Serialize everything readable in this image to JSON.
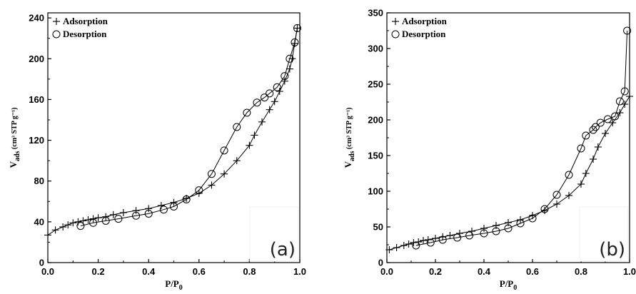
{
  "chart_data": [
    {
      "type": "scatter",
      "panel_label": "(a)",
      "xlabel": "P/P0",
      "xlabel_main": "P/P",
      "xlabel_sub": "0",
      "ylabel_main": "V",
      "ylabel_sub": "ads",
      "ylabel_unit": "(cm³ STP g⁻¹)",
      "xlim": [
        0,
        1.0
      ],
      "ylim": [
        0,
        245
      ],
      "xticks": [
        0.0,
        0.2,
        0.4,
        0.6,
        0.8,
        1.0
      ],
      "xtick_labels": [
        "0.0",
        "0.2",
        "0.4",
        "0.6",
        "0.8",
        "1.0"
      ],
      "yticks": [
        0,
        40,
        80,
        120,
        160,
        200,
        240
      ],
      "ytick_labels": [
        "0",
        "40",
        "80",
        "120",
        "160",
        "200",
        "240"
      ],
      "legend_position": "top-left",
      "series": [
        {
          "name": "Adsorption",
          "marker": "plus",
          "x": [
            0.0,
            0.03,
            0.06,
            0.08,
            0.1,
            0.12,
            0.14,
            0.16,
            0.18,
            0.2,
            0.23,
            0.26,
            0.3,
            0.35,
            0.4,
            0.45,
            0.5,
            0.55,
            0.6,
            0.65,
            0.7,
            0.75,
            0.8,
            0.82,
            0.85,
            0.88,
            0.9,
            0.92,
            0.94,
            0.96,
            0.97,
            0.98,
            0.99
          ],
          "y": [
            27,
            32,
            35,
            37,
            39,
            40,
            41,
            42,
            43,
            44,
            45,
            47,
            49,
            51,
            53,
            56,
            59,
            63,
            68,
            76,
            87,
            100,
            115,
            125,
            138,
            150,
            158,
            168,
            178,
            190,
            200,
            215,
            230
          ]
        },
        {
          "name": "Desorption",
          "marker": "circle",
          "x": [
            0.13,
            0.18,
            0.23,
            0.28,
            0.35,
            0.4,
            0.46,
            0.5,
            0.55,
            0.6,
            0.65,
            0.7,
            0.75,
            0.79,
            0.83,
            0.86,
            0.88,
            0.91,
            0.94,
            0.96,
            0.98,
            0.99
          ],
          "y": [
            36,
            39,
            41,
            43,
            46,
            48,
            52,
            55,
            62,
            71,
            87,
            110,
            133,
            147,
            157,
            162,
            166,
            172,
            183,
            200,
            216,
            230
          ]
        }
      ]
    },
    {
      "type": "scatter",
      "panel_label": "(b)",
      "xlabel": "P/P0",
      "xlabel_main": "P/P",
      "xlabel_sub": "0",
      "ylabel_main": "V",
      "ylabel_sub": "ads",
      "ylabel_unit": "(cm³ STP g⁻¹)",
      "xlim": [
        0,
        1.0
      ],
      "ylim": [
        0,
        350
      ],
      "xticks": [
        0.0,
        0.2,
        0.4,
        0.6,
        0.8,
        1.0
      ],
      "xtick_labels": [
        "0.0",
        "0.2",
        "0.4",
        "0.6",
        "0.8",
        "1.0"
      ],
      "yticks": [
        0,
        50,
        100,
        150,
        200,
        250,
        300,
        350
      ],
      "ytick_labels": [
        "0",
        "50",
        "100",
        "150",
        "200",
        "250",
        "300",
        "350"
      ],
      "legend_position": "top-left",
      "series": [
        {
          "name": "Adsorption",
          "marker": "plus",
          "x": [
            0.01,
            0.04,
            0.07,
            0.09,
            0.11,
            0.13,
            0.15,
            0.17,
            0.2,
            0.23,
            0.26,
            0.3,
            0.35,
            0.4,
            0.45,
            0.5,
            0.55,
            0.6,
            0.65,
            0.7,
            0.75,
            0.8,
            0.82,
            0.85,
            0.87,
            0.9,
            0.93,
            0.96,
            0.98,
            1.0
          ],
          "y": [
            18,
            21,
            24,
            26,
            28,
            29,
            31,
            32,
            34,
            36,
            38,
            41,
            44,
            48,
            52,
            56,
            60,
            66,
            73,
            82,
            94,
            110,
            125,
            145,
            162,
            181,
            196,
            210,
            222,
            233
          ]
        },
        {
          "name": "Desorption",
          "marker": "circle",
          "x": [
            0.12,
            0.18,
            0.23,
            0.29,
            0.34,
            0.4,
            0.45,
            0.5,
            0.55,
            0.6,
            0.65,
            0.7,
            0.75,
            0.8,
            0.82,
            0.85,
            0.86,
            0.88,
            0.91,
            0.94,
            0.96,
            0.98,
            0.99
          ],
          "y": [
            24,
            28,
            32,
            35,
            38,
            41,
            44,
            48,
            55,
            62,
            75,
            95,
            123,
            160,
            178,
            186,
            190,
            196,
            201,
            205,
            226,
            240,
            325
          ]
        }
      ]
    }
  ],
  "legend_entries": [
    "Adsorption",
    "Desorption"
  ]
}
